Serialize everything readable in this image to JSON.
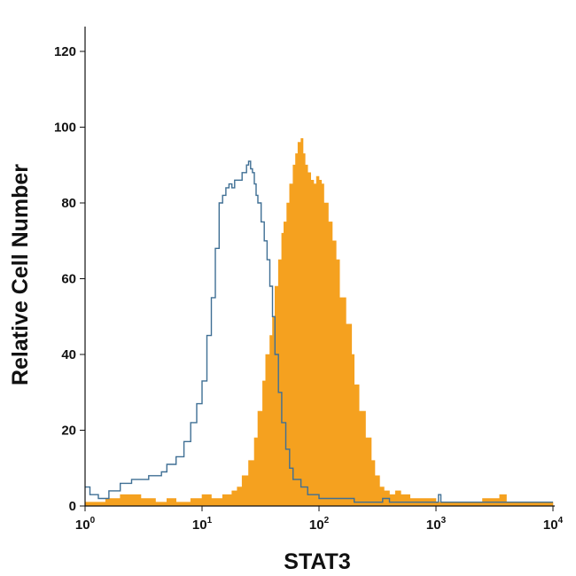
{
  "chart_data": {
    "type": "area",
    "title": "",
    "xlabel": "STAT3",
    "ylabel": "Relative Cell Number",
    "xscale": "log",
    "xlim": [
      1,
      10000
    ],
    "ylim": [
      0,
      125
    ],
    "grid": false,
    "x_ticks": [
      {
        "base": "10",
        "exp": "0",
        "value": 1
      },
      {
        "base": "10",
        "exp": "1",
        "value": 10
      },
      {
        "base": "10",
        "exp": "2",
        "value": 100
      },
      {
        "base": "10",
        "exp": "3",
        "value": 1000
      },
      {
        "base": "10",
        "exp": "4",
        "value": 10000
      }
    ],
    "y_ticks": [
      "0",
      "20",
      "40",
      "60",
      "80",
      "100",
      "120"
    ],
    "series": [
      {
        "role": "isotype-control",
        "style": "step-outline",
        "color": "#3f6f94",
        "x": [
          1.0,
          1.1,
          1.3,
          1.6,
          2.0,
          2.5,
          3.0,
          3.5,
          4.0,
          4.5,
          5.0,
          6.0,
          7.0,
          8.0,
          9.0,
          10.0,
          11.0,
          12.0,
          13.0,
          14.0,
          15.0,
          16.0,
          17.0,
          18.0,
          19.0,
          20.0,
          22.0,
          24.0,
          25.0,
          26.0,
          27.0,
          28.0,
          29.0,
          30.0,
          32.0,
          34.0,
          36.0,
          38.0,
          40.0,
          42.0,
          45.0,
          48.0,
          52.0,
          56.0,
          60.0,
          70.0,
          80.0,
          100.0,
          130.0,
          200.0,
          300.0,
          350.0,
          400.0,
          600.0,
          1000.0,
          1050.0,
          1100.0,
          2000.0,
          10000.0
        ],
        "y": [
          5,
          3,
          2,
          4,
          6,
          7,
          7,
          8,
          8,
          9,
          11,
          13,
          17,
          22,
          27,
          33,
          45,
          55,
          68,
          80,
          82,
          84,
          85,
          84,
          86,
          86,
          88,
          90,
          91,
          89,
          88,
          85,
          82,
          80,
          75,
          70,
          65,
          58,
          50,
          40,
          30,
          22,
          15,
          10,
          7,
          5,
          3,
          2,
          2,
          1,
          1,
          2,
          1,
          1,
          1,
          3,
          1,
          1,
          1
        ]
      },
      {
        "role": "STAT3",
        "style": "step-filled",
        "color": "#f5a11f",
        "x": [
          1.0,
          1.5,
          2.0,
          3.0,
          4.0,
          5.0,
          6.0,
          8.0,
          10.0,
          12.0,
          15.0,
          18.0,
          20.0,
          22.0,
          25.0,
          28.0,
          30.0,
          33.0,
          35.0,
          38.0,
          40.0,
          42.0,
          45.0,
          48.0,
          50.0,
          53.0,
          56.0,
          60.0,
          63.0,
          66.0,
          70.0,
          73.0,
          76.0,
          80.0,
          85.0,
          90.0,
          95.0,
          100.0,
          105.0,
          110.0,
          120.0,
          130.0,
          140.0,
          150.0,
          170.0,
          190.0,
          200.0,
          220.0,
          250.0,
          280.0,
          300.0,
          330.0,
          360.0,
          400.0,
          450.0,
          500.0,
          600.0,
          1000.0,
          2500.0,
          3500.0,
          4000.0,
          10000.0
        ],
        "y": [
          1,
          2,
          3,
          2,
          1,
          2,
          1,
          2,
          3,
          2,
          3,
          4,
          5,
          8,
          12,
          18,
          25,
          33,
          40,
          45,
          50,
          58,
          65,
          72,
          75,
          80,
          85,
          90,
          93,
          96,
          97,
          93,
          90,
          88,
          86,
          85,
          87,
          86,
          85,
          80,
          75,
          70,
          65,
          55,
          48,
          40,
          32,
          25,
          18,
          12,
          8,
          5,
          4,
          3,
          4,
          3,
          2,
          1,
          2,
          3,
          1,
          1
        ]
      }
    ]
  }
}
